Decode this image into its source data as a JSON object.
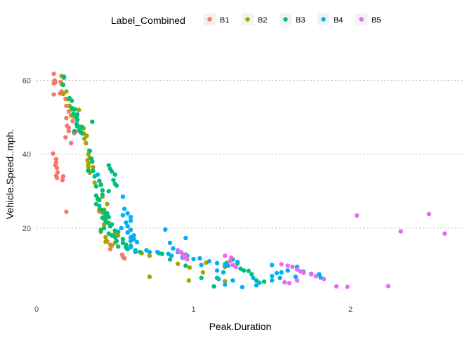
{
  "chart_data": {
    "type": "scatter",
    "title": "",
    "xlabel": "Peak.Duration",
    "ylabel": "Vehicle.Speed..mph.",
    "xlim": [
      0,
      2.72
    ],
    "ylim": [
      0,
      70
    ],
    "x_ticks": [
      0,
      1,
      2
    ],
    "y_ticks": [
      20,
      40,
      60
    ],
    "grid": "horizontal dotted",
    "legend": {
      "title": "Label_Combined",
      "position": "top",
      "entries": [
        "B1",
        "B2",
        "B3",
        "B4",
        "B5"
      ]
    },
    "series": [
      {
        "name": "B1",
        "color": "#f8766d",
        "points": [
          [
            0.11,
            61.8
          ],
          [
            0.115,
            60.0
          ],
          [
            0.12,
            59.5
          ],
          [
            0.11,
            59.2
          ],
          [
            0.155,
            59.6
          ],
          [
            0.17,
            58.8
          ],
          [
            0.16,
            57.0
          ],
          [
            0.11,
            56.2
          ],
          [
            0.185,
            55.0
          ],
          [
            0.19,
            53.1
          ],
          [
            0.205,
            51.6
          ],
          [
            0.19,
            49.8
          ],
          [
            0.23,
            49.0
          ],
          [
            0.195,
            47.7
          ],
          [
            0.205,
            47.2
          ],
          [
            0.205,
            46.3
          ],
          [
            0.25,
            46.2
          ],
          [
            0.24,
            45.7
          ],
          [
            0.185,
            44.6
          ],
          [
            0.22,
            43.0
          ],
          [
            0.105,
            40.2
          ],
          [
            0.125,
            38.7
          ],
          [
            0.125,
            37.8
          ],
          [
            0.12,
            37.0
          ],
          [
            0.13,
            36.3
          ],
          [
            0.135,
            35.1
          ],
          [
            0.125,
            34.2
          ],
          [
            0.17,
            34.0
          ],
          [
            0.13,
            33.6
          ],
          [
            0.165,
            33.0
          ],
          [
            0.19,
            24.4
          ],
          [
            0.45,
            16.4
          ],
          [
            0.48,
            15.2
          ],
          [
            0.47,
            14.3
          ],
          [
            0.545,
            12.8
          ],
          [
            0.55,
            12.2
          ],
          [
            0.56,
            11.8
          ],
          [
            0.4,
            24.5
          ],
          [
            0.15,
            56.5
          ]
        ]
      },
      {
        "name": "B2",
        "color": "#a3a500",
        "points": [
          [
            0.16,
            61.2
          ],
          [
            0.16,
            59.0
          ],
          [
            0.175,
            60.7
          ],
          [
            0.19,
            57.0
          ],
          [
            0.17,
            56.3
          ],
          [
            0.2,
            54.9
          ],
          [
            0.21,
            53.1
          ],
          [
            0.225,
            52.2
          ],
          [
            0.27,
            52.0
          ],
          [
            0.22,
            50.5
          ],
          [
            0.24,
            50.2
          ],
          [
            0.275,
            47.5
          ],
          [
            0.3,
            47.0
          ],
          [
            0.3,
            45.6
          ],
          [
            0.32,
            45.0
          ],
          [
            0.305,
            44.2
          ],
          [
            0.315,
            43.0
          ],
          [
            0.335,
            41.0
          ],
          [
            0.33,
            40.0
          ],
          [
            0.34,
            39.0
          ],
          [
            0.325,
            38.4
          ],
          [
            0.33,
            37.5
          ],
          [
            0.33,
            36.7
          ],
          [
            0.33,
            35.8
          ],
          [
            0.34,
            35.0
          ],
          [
            0.37,
            32.3
          ],
          [
            0.41,
            31.7
          ],
          [
            0.42,
            28.5
          ],
          [
            0.39,
            27.8
          ],
          [
            0.4,
            25.0
          ],
          [
            0.43,
            25.0
          ],
          [
            0.45,
            26.5
          ],
          [
            0.44,
            22.6
          ],
          [
            0.43,
            21.0
          ],
          [
            0.46,
            21.4
          ],
          [
            0.41,
            19.0
          ],
          [
            0.44,
            17.5
          ],
          [
            0.5,
            18.6
          ],
          [
            0.52,
            18.0
          ],
          [
            0.44,
            16.3
          ],
          [
            0.47,
            15.5
          ],
          [
            0.5,
            16.0
          ],
          [
            0.6,
            15.0
          ],
          [
            0.63,
            13.5
          ],
          [
            0.67,
            13.2
          ],
          [
            0.72,
            12.5
          ],
          [
            0.72,
            6.8
          ],
          [
            0.9,
            10.3
          ],
          [
            0.975,
            9.3
          ],
          [
            0.97,
            5.8
          ],
          [
            1.08,
            10.6
          ],
          [
            1.06,
            8.0
          ],
          [
            1.2,
            5.6
          ],
          [
            1.2,
            9.5
          ],
          [
            0.42,
            24.2
          ],
          [
            0.45,
            23.8
          ],
          [
            0.36,
            36.5
          ]
        ]
      },
      {
        "name": "B3",
        "color": "#00bf7d",
        "points": [
          [
            0.175,
            61.0
          ],
          [
            0.17,
            58.8
          ],
          [
            0.21,
            55.2
          ],
          [
            0.225,
            54.5
          ],
          [
            0.225,
            52.5
          ],
          [
            0.245,
            52.2
          ],
          [
            0.235,
            51.0
          ],
          [
            0.26,
            50.8
          ],
          [
            0.255,
            50.0
          ],
          [
            0.26,
            49.3
          ],
          [
            0.255,
            48.2
          ],
          [
            0.26,
            47.5
          ],
          [
            0.275,
            46.5
          ],
          [
            0.28,
            46.0
          ],
          [
            0.29,
            47.4
          ],
          [
            0.24,
            46.2
          ],
          [
            0.355,
            48.8
          ],
          [
            0.29,
            45.7
          ],
          [
            0.34,
            40.9
          ],
          [
            0.35,
            38.8
          ],
          [
            0.355,
            38.0
          ],
          [
            0.33,
            35.5
          ],
          [
            0.36,
            35.5
          ],
          [
            0.37,
            34.0
          ],
          [
            0.4,
            32.8
          ],
          [
            0.41,
            31.8
          ],
          [
            0.38,
            31.3
          ],
          [
            0.46,
            37.0
          ],
          [
            0.47,
            36.0
          ],
          [
            0.48,
            35.3
          ],
          [
            0.5,
            34.5
          ],
          [
            0.49,
            33.0
          ],
          [
            0.5,
            32.0
          ],
          [
            0.51,
            31.5
          ],
          [
            0.46,
            30.0
          ],
          [
            0.42,
            30.2
          ],
          [
            0.42,
            29.0
          ],
          [
            0.38,
            28.8
          ],
          [
            0.39,
            28.0
          ],
          [
            0.4,
            27.6
          ],
          [
            0.38,
            26.5
          ],
          [
            0.4,
            26.0
          ],
          [
            0.41,
            25.0
          ],
          [
            0.43,
            24.6
          ],
          [
            0.45,
            24.0
          ],
          [
            0.44,
            23.5
          ],
          [
            0.46,
            23.0
          ],
          [
            0.42,
            22.8
          ],
          [
            0.43,
            22.5
          ],
          [
            0.44,
            22.0
          ],
          [
            0.45,
            21.5
          ],
          [
            0.48,
            21.0
          ],
          [
            0.47,
            20.5
          ],
          [
            0.43,
            20.0
          ],
          [
            0.41,
            19.5
          ],
          [
            0.5,
            19.3
          ],
          [
            0.52,
            19.0
          ],
          [
            0.46,
            18.5
          ],
          [
            0.48,
            18.0
          ],
          [
            0.5,
            17.5
          ],
          [
            0.55,
            17.0
          ],
          [
            0.51,
            16.5
          ],
          [
            0.55,
            16.0
          ],
          [
            0.57,
            15.5
          ],
          [
            0.6,
            15.2
          ],
          [
            0.52,
            15.0
          ],
          [
            0.57,
            14.7
          ],
          [
            0.58,
            14.3
          ],
          [
            0.63,
            14.0
          ],
          [
            0.66,
            13.5
          ],
          [
            0.78,
            13.2
          ],
          [
            0.8,
            13.0
          ],
          [
            0.85,
            11.5
          ],
          [
            0.95,
            12.8
          ],
          [
            0.95,
            9.8
          ],
          [
            1.05,
            6.5
          ],
          [
            1.13,
            4.2
          ],
          [
            1.15,
            6.5
          ],
          [
            1.2,
            10.0
          ],
          [
            1.21,
            10.5
          ],
          [
            1.25,
            11.5
          ],
          [
            1.28,
            10.5
          ],
          [
            1.3,
            9.0
          ],
          [
            1.32,
            8.5
          ],
          [
            1.35,
            8.4
          ],
          [
            1.4,
            5.8
          ],
          [
            1.45,
            5.5
          ],
          [
            1.37,
            7.5
          ]
        ]
      },
      {
        "name": "B4",
        "color": "#00b0f6",
        "points": [
          [
            0.39,
            34.5
          ],
          [
            0.55,
            28.5
          ],
          [
            0.56,
            25.2
          ],
          [
            0.58,
            24.0
          ],
          [
            0.55,
            23.5
          ],
          [
            0.6,
            23.0
          ],
          [
            0.6,
            22.0
          ],
          [
            0.57,
            21.5
          ],
          [
            0.58,
            20.5
          ],
          [
            0.54,
            20.0
          ],
          [
            0.6,
            19.5
          ],
          [
            0.62,
            18.0
          ],
          [
            0.6,
            16.5
          ],
          [
            0.64,
            16.2
          ],
          [
            0.6,
            14.8
          ],
          [
            0.63,
            13.8
          ],
          [
            0.7,
            14.0
          ],
          [
            0.72,
            13.5
          ],
          [
            0.77,
            13.5
          ],
          [
            0.84,
            13.0
          ],
          [
            0.82,
            19.6
          ],
          [
            0.85,
            16.0
          ],
          [
            0.87,
            14.5
          ],
          [
            0.9,
            13.5
          ],
          [
            0.86,
            12.5
          ],
          [
            0.93,
            12.0
          ],
          [
            0.95,
            17.3
          ],
          [
            0.96,
            12.5
          ],
          [
            1.0,
            11.6
          ],
          [
            1.04,
            11.8
          ],
          [
            1.1,
            11.0
          ],
          [
            1.05,
            10.0
          ],
          [
            1.15,
            10.5
          ],
          [
            1.2,
            10.2
          ],
          [
            1.22,
            9.8
          ],
          [
            1.15,
            8.5
          ],
          [
            1.16,
            6.2
          ],
          [
            1.2,
            4.7
          ],
          [
            1.25,
            5.8
          ],
          [
            1.28,
            10.8
          ],
          [
            1.31,
            4.0
          ],
          [
            1.42,
            5.2
          ],
          [
            1.5,
            10.0
          ],
          [
            1.5,
            7.0
          ],
          [
            1.5,
            5.8
          ],
          [
            1.53,
            7.8
          ],
          [
            1.55,
            6.5
          ],
          [
            1.6,
            8.5
          ],
          [
            1.65,
            6.8
          ],
          [
            1.66,
            9.5
          ],
          [
            1.7,
            8.2
          ],
          [
            1.75,
            7.6
          ],
          [
            1.8,
            7.5
          ],
          [
            1.81,
            6.6
          ],
          [
            1.4,
            4.5
          ],
          [
            1.38,
            6.5
          ],
          [
            1.56,
            8.0
          ],
          [
            1.19,
            8.0
          ],
          [
            0.58,
            18.8
          ],
          [
            0.6,
            17.5
          ],
          [
            0.62,
            17.0
          ]
        ]
      },
      {
        "name": "B5",
        "color": "#e76bf3",
        "points": [
          [
            0.9,
            14.0
          ],
          [
            0.92,
            13.5
          ],
          [
            0.93,
            13.0
          ],
          [
            0.95,
            12.5
          ],
          [
            0.94,
            12.0
          ],
          [
            0.96,
            11.5
          ],
          [
            1.2,
            12.5
          ],
          [
            1.24,
            12.0
          ],
          [
            1.23,
            11.0
          ],
          [
            1.25,
            10.0
          ],
          [
            1.27,
            9.5
          ],
          [
            1.56,
            10.2
          ],
          [
            1.6,
            9.8
          ],
          [
            1.63,
            9.5
          ],
          [
            1.66,
            8.8
          ],
          [
            1.68,
            8.3
          ],
          [
            1.7,
            7.9
          ],
          [
            1.75,
            7.5
          ],
          [
            1.58,
            5.3
          ],
          [
            1.61,
            5.1
          ],
          [
            1.66,
            5.8
          ],
          [
            1.78,
            7.0
          ],
          [
            1.83,
            6.2
          ],
          [
            1.91,
            4.2
          ],
          [
            1.98,
            4.1
          ],
          [
            2.04,
            23.4
          ],
          [
            2.24,
            4.3
          ],
          [
            2.32,
            19.1
          ],
          [
            2.5,
            23.8
          ],
          [
            2.6,
            18.5
          ]
        ]
      }
    ]
  }
}
